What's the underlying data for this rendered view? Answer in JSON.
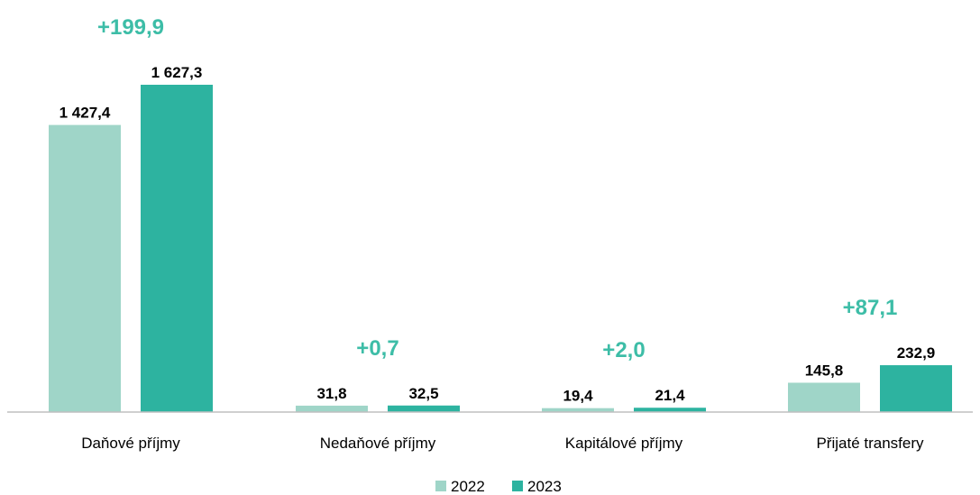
{
  "chart_data": {
    "type": "bar",
    "categories": [
      "Daňové příjmy",
      "Nedaňové příjmy",
      "Kapitálové příjmy",
      "Přijaté transfery"
    ],
    "series": [
      {
        "name": "2022",
        "color": "#9fd5c8",
        "values": [
          1427.4,
          31.8,
          19.4,
          145.8
        ],
        "labels": [
          "1 427,4",
          "31,8",
          "19,4",
          "145,8"
        ]
      },
      {
        "name": "2023",
        "color": "#2db3a0",
        "values": [
          1627.3,
          32.5,
          21.4,
          232.9
        ],
        "labels": [
          "1 627,3",
          "32,5",
          "21,4",
          "232,9"
        ]
      }
    ],
    "differences": [
      "+199,9",
      "+0,7",
      "+2,0",
      "+87,1"
    ],
    "difference_color": "#3dbda7",
    "axis_color": "#bfbfbf",
    "ylim": [
      0,
      1627.3
    ],
    "grid": false,
    "legend_position": "bottom"
  }
}
